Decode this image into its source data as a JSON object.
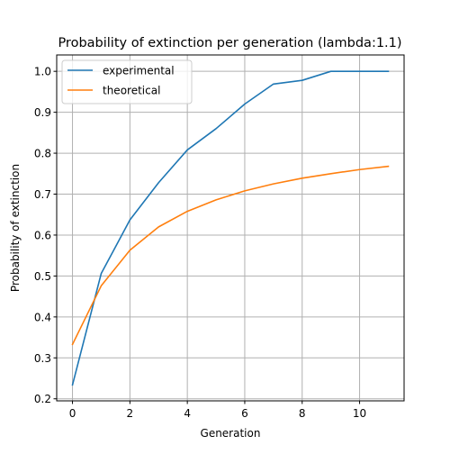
{
  "chart_data": {
    "type": "line",
    "title": "Probability of extinction per generation (lambda:1.1)",
    "xlabel": "Generation",
    "ylabel": "Probability of extinction",
    "xlim": [
      -0.55,
      11.55
    ],
    "ylim": [
      0.195,
      1.04
    ],
    "xticks": [
      0,
      2,
      4,
      6,
      8,
      10
    ],
    "yticks": [
      0.2,
      0.3,
      0.4,
      0.5,
      0.6,
      0.7,
      0.8,
      0.9,
      1.0
    ],
    "grid": true,
    "legend_position": "top-left",
    "x": [
      0,
      1,
      2,
      3,
      4,
      5,
      6,
      7,
      8,
      9,
      10,
      11
    ],
    "series": [
      {
        "name": "experimental",
        "color": "#1f77b4",
        "values": [
          0.234,
          0.506,
          0.637,
          0.728,
          0.808,
          0.86,
          0.92,
          0.969,
          0.978,
          1.0,
          1.0,
          1.0
        ]
      },
      {
        "name": "theoretical",
        "color": "#ff7f0e",
        "values": [
          0.333,
          0.476,
          0.563,
          0.62,
          0.658,
          0.686,
          0.708,
          0.725,
          0.739,
          0.75,
          0.76,
          0.768
        ]
      }
    ]
  }
}
